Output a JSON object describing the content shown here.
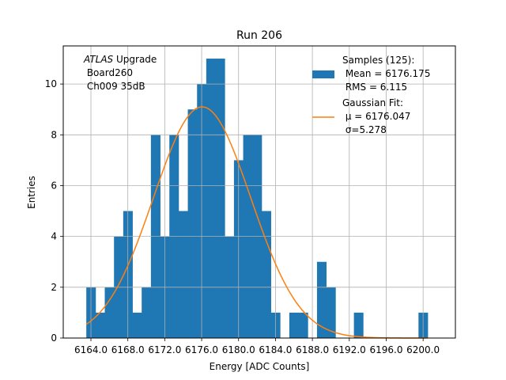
{
  "chart_data": {
    "type": "bar",
    "title": "Run 206",
    "xlabel": "Energy [ADC Counts]",
    "ylabel": "Entries",
    "xlim": [
      6161.0,
      6203.5
    ],
    "ylim": [
      0,
      11.5
    ],
    "grid": true,
    "bin_width": 1.0,
    "bin_starts": [
      6163.5,
      6164.5,
      6165.5,
      6166.5,
      6167.5,
      6168.5,
      6169.5,
      6170.5,
      6171.5,
      6172.5,
      6173.5,
      6174.5,
      6175.5,
      6176.5,
      6177.5,
      6178.5,
      6179.5,
      6180.5,
      6181.5,
      6182.5,
      6183.5,
      6184.5,
      6185.5,
      6186.5,
      6187.5,
      6188.5,
      6189.5,
      6190.5,
      6191.5,
      6192.5,
      6193.5,
      6194.5,
      6195.5,
      6196.5,
      6197.5,
      6198.5,
      6199.5
    ],
    "bin_counts": [
      2,
      1,
      2,
      4,
      5,
      1,
      2,
      8,
      4,
      8,
      5,
      9,
      10,
      11,
      11,
      4,
      7,
      8,
      8,
      5,
      1,
      0,
      1,
      1,
      0,
      3,
      2,
      0,
      0,
      1,
      0,
      0,
      0,
      0,
      0,
      0,
      1
    ],
    "xticks": [
      6164,
      6168,
      6172,
      6176,
      6180,
      6184,
      6188,
      6192,
      6196,
      6200
    ],
    "xtick_labels": [
      "6164.0",
      "6168.0",
      "6172.0",
      "6176.0",
      "6180.0",
      "6184.0",
      "6188.0",
      "6192.0",
      "6196.0",
      "6200.0"
    ],
    "yticks": [
      0,
      2,
      4,
      6,
      8,
      10
    ],
    "ytick_labels": [
      "0",
      "2",
      "4",
      "6",
      "8",
      "10"
    ],
    "fit": {
      "name": "Gaussian Fit",
      "mu": 6176.047,
      "sigma": 5.278,
      "amplitude": 9.1,
      "x_range": [
        6163.5,
        6200.5
      ],
      "color": "#ff7f0e"
    },
    "bar_color": "#1f77b4",
    "annotation": {
      "italic_word": "ATLAS",
      "line1_rest": " Upgrade",
      "line2": " Board260",
      "line3": " Ch009 35dB"
    },
    "legend": {
      "placement": "top-right",
      "samples_line1": "Samples (125):",
      "samples_line2": " Mean = 6176.175",
      "samples_line3": " RMS = 6.115",
      "fit_line1": "Gaussian Fit:",
      "fit_line2": " μ = 6176.047",
      "fit_line3": " σ=5.278"
    }
  }
}
